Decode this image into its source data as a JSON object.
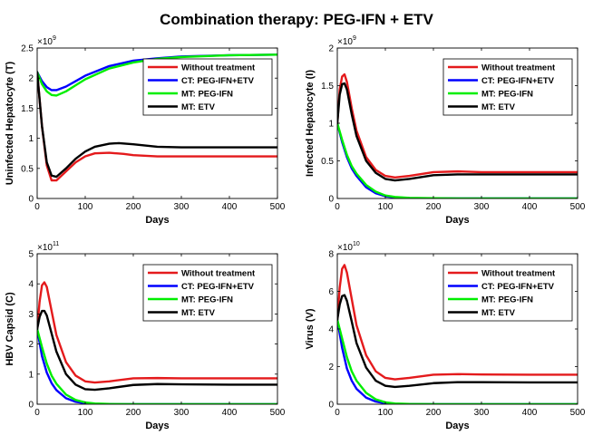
{
  "title": "Combination therapy: PEG-IFN + ETV",
  "legend_labels": [
    "Without treatment",
    "CT: PEG-IFN+ETV",
    "MT: PEG-IFN",
    "MT: ETV"
  ],
  "series_colors": {
    "Without treatment": "#e41a1c",
    "CT: PEG-IFN+ETV": "#0000ff",
    "MT: PEG-IFN": "#00ee00",
    "MT: ETV": "#000000"
  },
  "chart_data": [
    {
      "type": "line",
      "id": "T",
      "xlabel": "Days",
      "ylabel": "Uninfected Hepatocyte (T)",
      "xlim": [
        0,
        500
      ],
      "ylim": [
        0,
        2.5
      ],
      "xticks": [
        0,
        100,
        200,
        300,
        400,
        500
      ],
      "yticks": [
        0,
        0.5,
        1,
        1.5,
        2,
        2.5
      ],
      "ytick_labels": [
        "0",
        "0.5",
        "1",
        "1.5",
        "2",
        "2.5"
      ],
      "y_multiplier": "×10",
      "y_exponent": "9",
      "legend": "upper-right",
      "series": [
        {
          "name": "Without treatment",
          "x": [
            0,
            10,
            20,
            30,
            40,
            60,
            80,
            100,
            120,
            150,
            180,
            200,
            250,
            300,
            400,
            500
          ],
          "y": [
            2.1,
            1.2,
            0.55,
            0.3,
            0.3,
            0.45,
            0.6,
            0.7,
            0.75,
            0.76,
            0.74,
            0.72,
            0.7,
            0.7,
            0.7,
            0.7
          ]
        },
        {
          "name": "CT: PEG-IFN+ETV",
          "x": [
            0,
            10,
            20,
            30,
            40,
            60,
            80,
            100,
            150,
            200,
            250,
            300,
            400,
            500
          ],
          "y": [
            2.1,
            1.95,
            1.85,
            1.8,
            1.8,
            1.86,
            1.95,
            2.04,
            2.2,
            2.29,
            2.33,
            2.36,
            2.38,
            2.39
          ]
        },
        {
          "name": "MT: PEG-IFN",
          "x": [
            0,
            10,
            20,
            30,
            40,
            60,
            80,
            100,
            150,
            200,
            250,
            300,
            400,
            500
          ],
          "y": [
            2.1,
            1.9,
            1.78,
            1.72,
            1.71,
            1.78,
            1.88,
            1.98,
            2.16,
            2.26,
            2.32,
            2.35,
            2.38,
            2.39
          ]
        },
        {
          "name": "MT: ETV",
          "x": [
            0,
            10,
            20,
            30,
            40,
            60,
            80,
            100,
            120,
            150,
            170,
            200,
            250,
            300,
            400,
            500
          ],
          "y": [
            2.1,
            1.2,
            0.6,
            0.38,
            0.36,
            0.5,
            0.66,
            0.78,
            0.86,
            0.91,
            0.92,
            0.9,
            0.86,
            0.85,
            0.85,
            0.85
          ]
        }
      ]
    },
    {
      "type": "line",
      "id": "I",
      "xlabel": "Days",
      "ylabel": "Infected Hepatocyte (I)",
      "xlim": [
        0,
        500
      ],
      "ylim": [
        0,
        2
      ],
      "xticks": [
        0,
        100,
        200,
        300,
        400,
        500
      ],
      "yticks": [
        0,
        0.5,
        1,
        1.5,
        2
      ],
      "ytick_labels": [
        "0",
        "0.5",
        "1",
        "1.5",
        "2"
      ],
      "y_multiplier": "×10",
      "y_exponent": "9",
      "legend": "upper-right",
      "series": [
        {
          "name": "Without treatment",
          "x": [
            0,
            5,
            10,
            15,
            20,
            30,
            40,
            60,
            80,
            100,
            120,
            150,
            200,
            250,
            300,
            400,
            500
          ],
          "y": [
            1.0,
            1.45,
            1.62,
            1.65,
            1.55,
            1.2,
            0.9,
            0.55,
            0.38,
            0.3,
            0.28,
            0.3,
            0.35,
            0.36,
            0.35,
            0.35,
            0.35
          ]
        },
        {
          "name": "CT: PEG-IFN+ETV",
          "x": [
            0,
            10,
            20,
            30,
            40,
            60,
            80,
            100,
            120,
            150,
            200,
            300,
            500
          ],
          "y": [
            1.0,
            0.75,
            0.55,
            0.4,
            0.3,
            0.15,
            0.07,
            0.03,
            0.015,
            0.005,
            0.002,
            0.0,
            0.0
          ]
        },
        {
          "name": "MT: PEG-IFN",
          "x": [
            0,
            10,
            20,
            30,
            40,
            60,
            80,
            100,
            120,
            150,
            200,
            300,
            500
          ],
          "y": [
            1.0,
            0.78,
            0.58,
            0.43,
            0.33,
            0.18,
            0.09,
            0.04,
            0.02,
            0.008,
            0.003,
            0.0,
            0.0
          ]
        },
        {
          "name": "MT: ETV",
          "x": [
            0,
            5,
            10,
            15,
            20,
            30,
            40,
            60,
            80,
            100,
            120,
            150,
            200,
            250,
            300,
            400,
            500
          ],
          "y": [
            1.0,
            1.38,
            1.52,
            1.53,
            1.45,
            1.12,
            0.83,
            0.5,
            0.34,
            0.26,
            0.24,
            0.26,
            0.31,
            0.32,
            0.32,
            0.32,
            0.32
          ]
        }
      ]
    },
    {
      "type": "line",
      "id": "C",
      "xlabel": "Days",
      "ylabel": "HBV Capsid (C)",
      "xlim": [
        0,
        500
      ],
      "ylim": [
        0,
        5
      ],
      "xticks": [
        0,
        100,
        200,
        300,
        400,
        500
      ],
      "yticks": [
        0,
        1,
        2,
        3,
        4,
        5
      ],
      "ytick_labels": [
        "0",
        "1",
        "2",
        "3",
        "4",
        "5"
      ],
      "y_multiplier": "×10",
      "y_exponent": "11",
      "legend": "upper-right",
      "series": [
        {
          "name": "Without treatment",
          "x": [
            0,
            5,
            10,
            15,
            20,
            30,
            40,
            60,
            80,
            100,
            120,
            150,
            200,
            250,
            300,
            400,
            500
          ],
          "y": [
            2.5,
            3.4,
            3.95,
            4.05,
            3.9,
            3.1,
            2.3,
            1.4,
            0.95,
            0.76,
            0.72,
            0.76,
            0.86,
            0.87,
            0.86,
            0.86,
            0.86
          ]
        },
        {
          "name": "CT: PEG-IFN+ETV",
          "x": [
            0,
            10,
            20,
            30,
            40,
            60,
            80,
            100,
            120,
            150,
            200,
            300,
            500
          ],
          "y": [
            2.5,
            1.6,
            1.05,
            0.7,
            0.47,
            0.2,
            0.08,
            0.03,
            0.012,
            0.004,
            0.001,
            0.0,
            0.0
          ]
        },
        {
          "name": "MT: PEG-IFN",
          "x": [
            0,
            10,
            20,
            30,
            40,
            60,
            80,
            100,
            120,
            150,
            200,
            300,
            500
          ],
          "y": [
            2.5,
            1.9,
            1.35,
            0.95,
            0.68,
            0.32,
            0.14,
            0.06,
            0.025,
            0.008,
            0.002,
            0.0,
            0.0
          ]
        },
        {
          "name": "MT: ETV",
          "x": [
            0,
            5,
            10,
            15,
            20,
            30,
            40,
            60,
            80,
            100,
            120,
            150,
            200,
            250,
            300,
            400,
            500
          ],
          "y": [
            2.5,
            2.9,
            3.1,
            3.1,
            2.95,
            2.35,
            1.75,
            1.0,
            0.65,
            0.5,
            0.48,
            0.53,
            0.64,
            0.67,
            0.66,
            0.65,
            0.65
          ]
        }
      ]
    },
    {
      "type": "line",
      "id": "V",
      "xlabel": "Days",
      "ylabel": "Virus (V)",
      "xlim": [
        0,
        500
      ],
      "ylim": [
        0,
        8
      ],
      "xticks": [
        0,
        100,
        200,
        300,
        400,
        500
      ],
      "yticks": [
        0,
        2,
        4,
        6,
        8
      ],
      "ytick_labels": [
        "0",
        "2",
        "4",
        "6",
        "8"
      ],
      "y_multiplier": "×10",
      "y_exponent": "10",
      "legend": "upper-right",
      "series": [
        {
          "name": "Without treatment",
          "x": [
            0,
            5,
            10,
            15,
            20,
            30,
            40,
            60,
            80,
            100,
            120,
            150,
            200,
            250,
            300,
            400,
            500
          ],
          "y": [
            4.5,
            6.2,
            7.2,
            7.4,
            7.0,
            5.6,
            4.2,
            2.6,
            1.75,
            1.4,
            1.32,
            1.4,
            1.57,
            1.6,
            1.58,
            1.57,
            1.57
          ]
        },
        {
          "name": "CT: PEG-IFN+ETV",
          "x": [
            0,
            10,
            20,
            30,
            40,
            60,
            80,
            100,
            120,
            150,
            200,
            300,
            500
          ],
          "y": [
            4.5,
            3.0,
            1.9,
            1.25,
            0.82,
            0.35,
            0.14,
            0.05,
            0.02,
            0.006,
            0.001,
            0.0,
            0.0
          ]
        },
        {
          "name": "MT: PEG-IFN",
          "x": [
            0,
            10,
            20,
            30,
            40,
            60,
            80,
            100,
            120,
            150,
            200,
            300,
            500
          ],
          "y": [
            4.5,
            3.5,
            2.5,
            1.75,
            1.25,
            0.6,
            0.26,
            0.1,
            0.04,
            0.012,
            0.003,
            0.0,
            0.0
          ]
        },
        {
          "name": "MT: ETV",
          "x": [
            0,
            5,
            10,
            15,
            20,
            30,
            40,
            60,
            80,
            100,
            120,
            150,
            200,
            250,
            300,
            400,
            500
          ],
          "y": [
            4.5,
            5.3,
            5.75,
            5.8,
            5.5,
            4.4,
            3.25,
            1.95,
            1.25,
            0.98,
            0.92,
            0.98,
            1.12,
            1.17,
            1.17,
            1.16,
            1.16
          ]
        }
      ]
    }
  ]
}
